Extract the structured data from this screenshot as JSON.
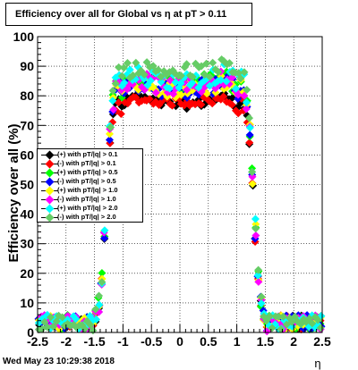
{
  "chart_data": {
    "type": "scatter",
    "title": "Efficiency over all for Global vs   η at pT > 0.11",
    "xlabel": "η",
    "ylabel": "Efficiency over all (%)",
    "xlim": [
      -2.5,
      2.5
    ],
    "ylim": [
      0,
      100
    ],
    "x_ticks": [
      "-2.5",
      "-2",
      "-1.5",
      "-1",
      "-0.5",
      "0",
      "0.5",
      "1",
      "1.5",
      "2",
      "2.5"
    ],
    "y_ticks": [
      "0",
      "10",
      "20",
      "30",
      "40",
      "50",
      "60",
      "70",
      "80",
      "90",
      "100"
    ],
    "grid": true,
    "legend_position": "left-middle",
    "x_bin_width": 0.05,
    "series": [
      {
        "name": "(+) with pT/|q| > 0.1",
        "color": "#000000",
        "plateau": 80,
        "dip": 77
      },
      {
        "name": "(-) with pT/|q| > 0.1",
        "color": "#ff0000",
        "plateau": 79,
        "dip": 78
      },
      {
        "name": "(+) with pT/|q| > 0.5",
        "color": "#00ff00",
        "plateau": 86,
        "dip": 84
      },
      {
        "name": "(-) with pT/|q| > 0.5",
        "color": "#0000ff",
        "plateau": 85,
        "dip": 82
      },
      {
        "name": "(+) with pT/|q| > 1.0",
        "color": "#ffff00",
        "plateau": 85,
        "dip": 82
      },
      {
        "name": "(-) with pT/|q| > 1.0",
        "color": "#ff00ff",
        "plateau": 86,
        "dip": 83
      },
      {
        "name": "(+) with pT/|q| > 2.0",
        "color": "#00ffff",
        "plateau": 88,
        "dip": 85
      },
      {
        "name": "(-) with pT/|q| > 2.0",
        "color": "#66cc66",
        "plateau": 90,
        "dip": 88
      }
    ]
  },
  "footer": {
    "datestamp": "Wed May 23 10:29:38 2018"
  }
}
